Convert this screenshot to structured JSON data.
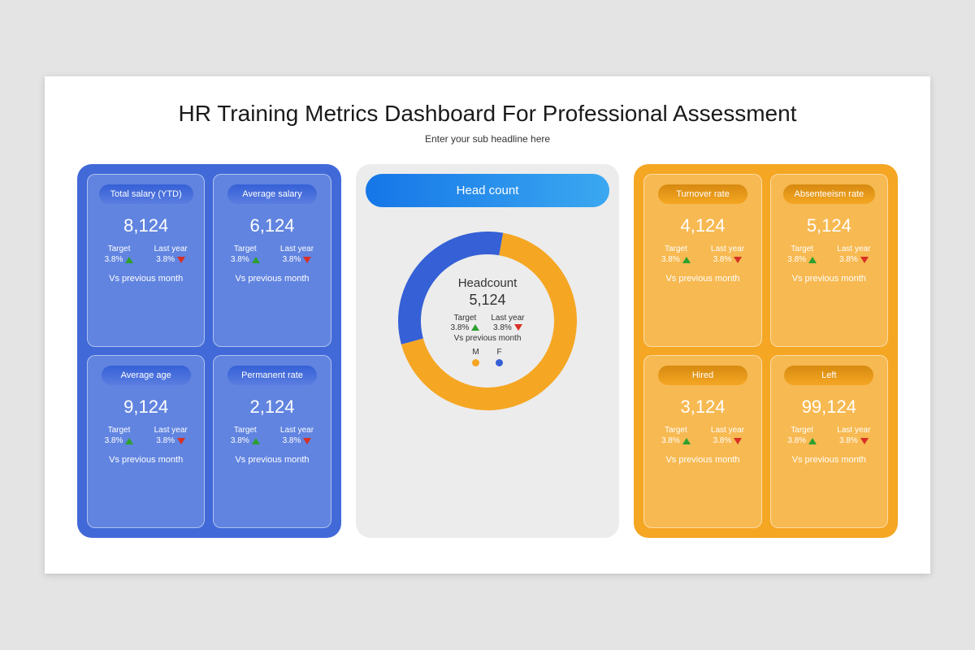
{
  "title": "HR Training Metrics Dashboard For Professional Assessment",
  "subtitle": "Enter your sub headline here",
  "colors": {
    "page_bg": "#e4e4e4",
    "slide_bg": "#ffffff",
    "blue_panel": "#4169d8",
    "blue_card": "#6184e0",
    "blue_pill_start": "#3560d6",
    "blue_pill_end": "#5a7de0",
    "orange_panel": "#f5a623",
    "orange_card": "#f7b951",
    "orange_pill_start": "#d68a10",
    "orange_pill_end": "#f5a623",
    "center_panel": "#ececec",
    "center_pill_start": "#1576e8",
    "center_pill_end": "#3ba8f0",
    "green_tri": "#2ca030",
    "red_tri": "#d93025",
    "donut_orange": "#f5a623",
    "donut_blue": "#3560d6"
  },
  "left_cards": [
    {
      "label": "Total salary (YTD)",
      "value": "8,124",
      "target": "3.8%",
      "lastyear": "3.8%",
      "vs": "Vs previous month"
    },
    {
      "label": "Average salary",
      "value": "6,124",
      "target": "3.8%",
      "lastyear": "3.8%",
      "vs": "Vs previous month"
    },
    {
      "label": "Average age",
      "value": "9,124",
      "target": "3.8%",
      "lastyear": "3.8%",
      "vs": "Vs previous month"
    },
    {
      "label": "Permanent rate",
      "value": "2,124",
      "target": "3.8%",
      "lastyear": "3.8%",
      "vs": "Vs previous month"
    }
  ],
  "right_cards": [
    {
      "label": "Turnover rate",
      "value": "4,124",
      "target": "3.8%",
      "lastyear": "3.8%",
      "vs": "Vs previous month"
    },
    {
      "label": "Absenteeism rate",
      "value": "5,124",
      "target": "3.8%",
      "lastyear": "3.8%",
      "vs": "Vs previous month"
    },
    {
      "label": "Hired",
      "value": "3,124",
      "target": "3.8%",
      "lastyear": "3.8%",
      "vs": "Vs previous month"
    },
    {
      "label": "Left",
      "value": "99,124",
      "target": "3.8%",
      "lastyear": "3.8%",
      "vs": "Vs previous month"
    }
  ],
  "center": {
    "pill": "Head count",
    "donut": {
      "title": "Headcount",
      "value": "5,124",
      "target_label": "Target",
      "target": "3.8%",
      "lastyear_label": "Last year",
      "lastyear": "3.8%",
      "vs": "Vs previous month",
      "male_label": "M",
      "female_label": "F",
      "male_pct": 68,
      "female_pct": 32,
      "ring_width": 28
    }
  },
  "labels": {
    "target": "Target",
    "lastyear": "Last year"
  }
}
